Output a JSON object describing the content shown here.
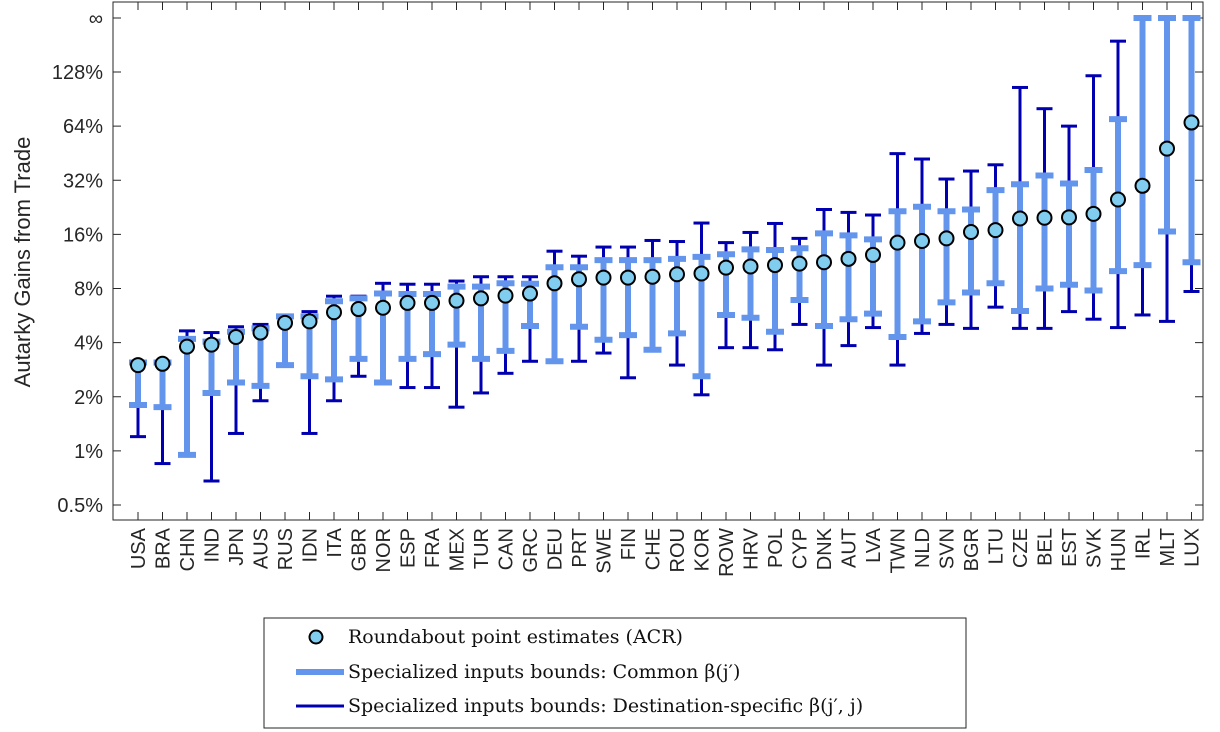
{
  "chart_data": {
    "type": "errorbar",
    "ylabel": "Autarky Gains from Trade",
    "yscale": "log2",
    "ylim": [
      0.42,
      250
    ],
    "yticks": [
      {
        "value": 0.5,
        "label": "0.5%"
      },
      {
        "value": 1,
        "label": "1%"
      },
      {
        "value": 2,
        "label": "2%"
      },
      {
        "value": 4,
        "label": "4%"
      },
      {
        "value": 8,
        "label": "8%"
      },
      {
        "value": 16,
        "label": "16%"
      },
      {
        "value": 32,
        "label": "32%"
      },
      {
        "value": 64,
        "label": "64%"
      },
      {
        "value": 128,
        "label": "128%"
      },
      {
        "value": 250,
        "label": "∞"
      }
    ],
    "colors": {
      "point_face": "#80cdf0",
      "point_edge": "#000000",
      "common": "#6495ED",
      "destination": "#0000B0",
      "axis": "#262626"
    },
    "categories": [
      "USA",
      "BRA",
      "CHN",
      "IND",
      "JPN",
      "AUS",
      "RUS",
      "IDN",
      "ITA",
      "GBR",
      "NOR",
      "ESP",
      "FRA",
      "MEX",
      "TUR",
      "CAN",
      "GRC",
      "DEU",
      "PRT",
      "SWE",
      "FIN",
      "CHE",
      "ROU",
      "KOR",
      "ROW",
      "HRV",
      "POL",
      "CYP",
      "DNK",
      "AUT",
      "LVA",
      "TWN",
      "NLD",
      "SVN",
      "BGR",
      "LTU",
      "CZE",
      "BEL",
      "EST",
      "SVK",
      "HUN",
      "IRL",
      "MLT",
      "LUX"
    ],
    "series": [
      {
        "name": "Roundabout point estimates (ACR)",
        "values": [
          3.0,
          3.05,
          3.8,
          3.9,
          4.3,
          4.55,
          5.15,
          5.25,
          5.9,
          6.15,
          6.25,
          6.65,
          6.65,
          6.85,
          7.05,
          7.3,
          7.5,
          8.55,
          9.0,
          9.2,
          9.2,
          9.3,
          9.6,
          9.7,
          10.45,
          10.6,
          10.8,
          11.0,
          11.2,
          11.7,
          12.3,
          14.4,
          14.7,
          15.2,
          16.5,
          16.9,
          19.6,
          19.8,
          19.9,
          20.8,
          25.0,
          29.8,
          48.0,
          67.0
        ]
      },
      {
        "name": "Specialized inputs bounds: Common β(j′)",
        "lower": [
          1.8,
          1.75,
          0.95,
          2.1,
          2.4,
          2.3,
          3.0,
          2.6,
          2.5,
          3.25,
          2.4,
          3.25,
          3.45,
          3.9,
          3.25,
          3.6,
          4.95,
          3.15,
          4.9,
          4.15,
          4.4,
          3.65,
          4.5,
          2.6,
          5.7,
          5.5,
          4.6,
          6.9,
          4.95,
          5.4,
          5.8,
          4.3,
          5.25,
          6.7,
          7.6,
          8.55,
          6.0,
          8.0,
          8.4,
          7.8,
          10.0,
          10.8,
          16.6,
          11.2
        ],
        "upper": [
          3.1,
          3.1,
          4.2,
          4.05,
          4.6,
          4.8,
          5.6,
          5.6,
          6.8,
          7.05,
          7.5,
          7.45,
          7.45,
          8.2,
          8.2,
          8.55,
          8.5,
          10.5,
          10.5,
          11.5,
          11.5,
          11.5,
          11.7,
          12.0,
          12.4,
          13.2,
          13.1,
          13.4,
          16.2,
          15.8,
          15.0,
          21.5,
          22.8,
          21.5,
          22.0,
          28.2,
          30.4,
          34.0,
          30.7,
          36.5,
          70.0,
          250,
          250,
          250
        ]
      },
      {
        "name": "Specialized inputs bounds: Destination-specific β(j′, j)",
        "lower": [
          1.2,
          0.85,
          0.95,
          0.68,
          1.25,
          1.9,
          3.0,
          1.25,
          1.9,
          2.6,
          2.4,
          2.25,
          2.25,
          1.75,
          2.1,
          2.7,
          3.15,
          3.15,
          3.15,
          3.5,
          2.55,
          3.65,
          3.0,
          2.05,
          3.75,
          3.75,
          3.65,
          5.05,
          3.0,
          3.85,
          4.85,
          3.0,
          4.5,
          5.05,
          4.8,
          6.3,
          4.8,
          4.8,
          5.95,
          5.4,
          4.85,
          5.7,
          5.25,
          7.7
        ],
        "upper": [
          3.1,
          3.1,
          4.65,
          4.55,
          4.9,
          5.05,
          5.55,
          5.95,
          7.25,
          7.25,
          8.55,
          8.45,
          8.45,
          8.8,
          9.3,
          9.3,
          9.3,
          12.9,
          12.1,
          13.6,
          13.6,
          14.8,
          14.6,
          18.5,
          14.4,
          16.4,
          18.4,
          15.2,
          22.0,
          21.2,
          20.5,
          45.0,
          42.0,
          32.5,
          36.0,
          39.0,
          105,
          80,
          64,
          122,
          190,
          250,
          250,
          250
        ]
      }
    ],
    "legend": {
      "position": "bottom-center",
      "entries": [
        {
          "label": "Roundabout point estimates (ACR)",
          "marker": "circle"
        },
        {
          "label": "Specialized inputs bounds: Common β(j′)",
          "marker": "thick-line"
        },
        {
          "label": "Specialized inputs bounds: Destination-specific β(j′, j)",
          "marker": "thin-line"
        }
      ]
    }
  }
}
